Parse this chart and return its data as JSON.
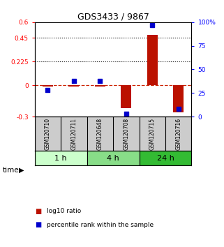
{
  "title": "GDS3433 / 9867",
  "samples": [
    "GSM120710",
    "GSM120711",
    "GSM120648",
    "GSM120708",
    "GSM120715",
    "GSM120716"
  ],
  "time_groups": [
    {
      "label": "1 h",
      "indices": [
        0,
        1
      ],
      "color": "#ccffcc"
    },
    {
      "label": "4 h",
      "indices": [
        2,
        3
      ],
      "color": "#88dd88"
    },
    {
      "label": "24 h",
      "indices": [
        4,
        5
      ],
      "color": "#33bb33"
    }
  ],
  "log10_ratio": [
    -0.01,
    -0.01,
    -0.01,
    -0.22,
    0.48,
    -0.26
  ],
  "percentile_rank": [
    28,
    38,
    38,
    3,
    97,
    8
  ],
  "ylim_left": [
    -0.3,
    0.6
  ],
  "ylim_right": [
    0,
    100
  ],
  "yticks_left": [
    -0.3,
    0.0,
    0.225,
    0.45,
    0.6
  ],
  "ytick_labels_left": [
    "-0.3",
    "0",
    "0.225",
    "0.45",
    "0.6"
  ],
  "yticks_right": [
    0,
    25,
    50,
    75,
    100
  ],
  "ytick_labels_right": [
    "0",
    "25",
    "50",
    "75",
    "100%"
  ],
  "hlines": [
    0.225,
    0.45
  ],
  "bar_color": "#bb1100",
  "scatter_color": "#0000cc",
  "dashed_line_color": "#cc2200",
  "background_color": "#ffffff",
  "bar_width": 0.4,
  "label_panel_color": "#cccccc",
  "time_panel_bg": "#ffffff"
}
